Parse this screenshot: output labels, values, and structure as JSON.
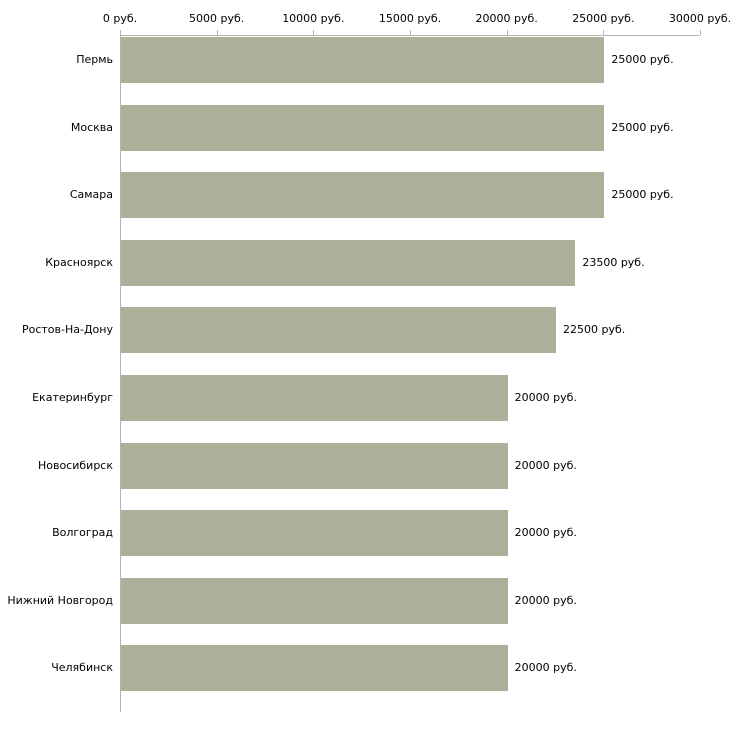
{
  "chart_data": {
    "type": "bar",
    "orientation": "horizontal",
    "title": "",
    "xlabel": "",
    "ylabel": "",
    "categories": [
      "Пермь",
      "Москва",
      "Самара",
      "Красноярск",
      "Ростов-На-Дону",
      "Екатеринбург",
      "Новосибирск",
      "Волгоград",
      "Нижний Новгород",
      "Челябинск"
    ],
    "values": [
      25000,
      25000,
      25000,
      23500,
      22500,
      20000,
      20000,
      20000,
      20000,
      20000
    ],
    "value_labels": [
      "25000 руб.",
      "25000 руб.",
      "25000 руб.",
      "23500 руб.",
      "22500 руб.",
      "20000 руб.",
      "20000 руб.",
      "20000 руб.",
      "20000 руб.",
      "20000 руб."
    ],
    "x_ticks": [
      0,
      5000,
      10000,
      15000,
      20000,
      25000,
      30000
    ],
    "x_tick_labels": [
      "0 руб.",
      "5000 руб.",
      "10000 руб.",
      "15000 руб.",
      "20000 руб.",
      "25000 руб.",
      "30000 руб."
    ],
    "xlim": [
      0,
      30000
    ],
    "grid": false,
    "legend": false,
    "colors": {
      "bar": "#abb198",
      "axis": "#b3b3b3",
      "text": "#000000",
      "background": "#ffffff"
    }
  }
}
